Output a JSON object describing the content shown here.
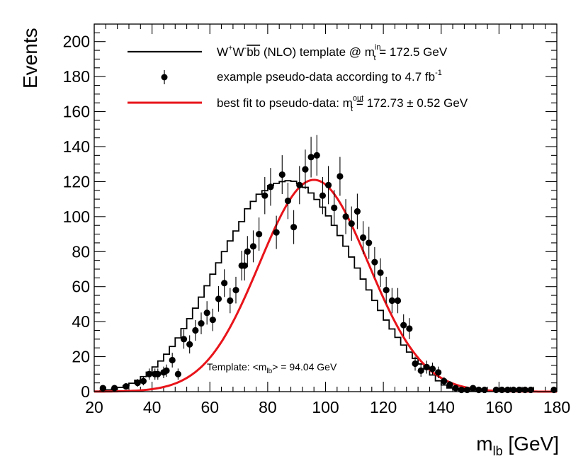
{
  "chart_data": {
    "type": "histogram-fit",
    "title": "",
    "xlabel": "m_lb [GeV]",
    "ylabel": "Events",
    "xlim": [
      20,
      180
    ],
    "ylim": [
      0,
      210
    ],
    "x_ticks": [
      20,
      40,
      60,
      80,
      100,
      120,
      140,
      160,
      180
    ],
    "y_ticks": [
      0,
      20,
      40,
      60,
      80,
      100,
      120,
      140,
      160,
      180,
      200
    ],
    "legend": [
      {
        "style": "line",
        "color": "#000000",
        "label": "W⁺W⁻bb̄ (NLO) template @ m_t^in = 172.5 GeV",
        "parts": [
          "W",
          "+",
          "W",
          "-",
          "bb",
          " (NLO) template @ m",
          "in",
          "t",
          " = 172.5 GeV"
        ]
      },
      {
        "style": "marker",
        "color": "#000000",
        "label": "example pseudo-data according to 4.7 fb⁻¹",
        "parts": [
          "example pseudo-data according to 4.7 fb",
          "-1"
        ]
      },
      {
        "style": "line",
        "color": "#e8141a",
        "label": "best fit to pseudo-data: m_t^out = 172.73 ± 0.52 GeV",
        "parts": [
          "best fit to pseudo-data: m",
          "out",
          "t",
          " = 172.73 ± 0.52 GeV"
        ]
      }
    ],
    "annotation": {
      "parts": [
        "Template: <m",
        "lb",
        "> = 94.04 GeV"
      ]
    },
    "series": [
      {
        "name": "template",
        "kind": "step",
        "color": "#000000",
        "bin_width": 2,
        "x_start": 20,
        "values": [
          0.3,
          0.6,
          1.0,
          1.6,
          2.4,
          3.4,
          4.8,
          6.5,
          8.6,
          11.1,
          14.1,
          17.5,
          21.4,
          25.8,
          30.7,
          36.0,
          41.7,
          47.7,
          54.0,
          60.5,
          67.1,
          73.6,
          80.0,
          86.1,
          91.8,
          97.1,
          104.5,
          108.7,
          112.8,
          114.8,
          117.8,
          119.0,
          120.0,
          120.5,
          120.2,
          118.8,
          116.7,
          113.5,
          109.8,
          105.4,
          100.4,
          95.0,
          89.2,
          83.1,
          76.9,
          70.6,
          64.3,
          58.1,
          52.1,
          46.4,
          40.9,
          35.8,
          31.0,
          26.6,
          22.6,
          19.0,
          15.8,
          13.0,
          9.5,
          6.2,
          3.8,
          2.1,
          1.2,
          0.6,
          0.3,
          0.2,
          0.1,
          0.1,
          0.1,
          0.1,
          0.1,
          0.1,
          0.1,
          0.1,
          0.1,
          0.1,
          0.1,
          0.1,
          0.1,
          0.1
        ]
      },
      {
        "name": "fit",
        "kind": "gaussian",
        "color": "#e8141a",
        "amplitude": 121,
        "mean": 96,
        "sigma": 18.8
      },
      {
        "name": "pseudo-data",
        "kind": "points",
        "color": "#000000",
        "x": [
          23,
          27,
          31,
          35,
          37,
          39,
          41,
          42,
          44,
          45,
          47,
          49,
          51,
          53,
          55,
          57,
          59,
          61,
          63,
          65,
          67,
          69,
          71,
          72,
          73,
          75,
          77,
          79,
          81,
          83,
          85,
          87,
          89,
          91,
          93,
          95,
          97,
          99,
          101,
          103,
          105,
          107,
          109,
          111,
          113,
          115,
          117,
          119,
          121,
          123,
          125,
          127,
          129,
          131,
          133,
          135,
          137,
          139,
          141,
          143,
          145,
          147,
          149,
          151,
          153,
          155,
          159,
          161,
          163,
          165,
          167,
          169,
          171,
          179
        ],
        "y": [
          2,
          2,
          3,
          5,
          6,
          10,
          10,
          10,
          11,
          12,
          18,
          10,
          30,
          27,
          35,
          39,
          45,
          41,
          53,
          62,
          52,
          58,
          72,
          72,
          80,
          83,
          90,
          112,
          117,
          91,
          124,
          109,
          94,
          118,
          127,
          134,
          135,
          112,
          118,
          105,
          123,
          100,
          96,
          103,
          88,
          85,
          74,
          68,
          58,
          52,
          52,
          38,
          36,
          16,
          12,
          14,
          13,
          11,
          6,
          4,
          2,
          1,
          1,
          2,
          1,
          1,
          1,
          1,
          1,
          1,
          1,
          1,
          1,
          1
        ],
        "yerr": [
          1.4,
          1.4,
          1.7,
          2.2,
          2.4,
          3.2,
          3.2,
          3.2,
          3.3,
          3.5,
          4.2,
          3.2,
          5.5,
          5.2,
          5.9,
          6.2,
          6.7,
          6.4,
          7.3,
          7.9,
          7.2,
          7.6,
          8.5,
          8.5,
          8.9,
          9.1,
          9.5,
          10.6,
          10.8,
          9.5,
          11.1,
          10.4,
          9.7,
          10.9,
          11.3,
          11.6,
          11.6,
          10.6,
          10.9,
          10.2,
          11.1,
          10.0,
          9.8,
          10.1,
          9.4,
          9.2,
          8.6,
          8.2,
          7.6,
          7.2,
          7.2,
          6.2,
          6.0,
          4.0,
          3.5,
          3.7,
          3.6,
          3.3,
          2.4,
          2.0,
          1.4,
          1.0,
          1.0,
          1.4,
          1.0,
          1.0,
          1.0,
          1.0,
          1.0,
          1.0,
          1.0,
          1.0,
          1.0,
          1.0
        ]
      }
    ]
  }
}
